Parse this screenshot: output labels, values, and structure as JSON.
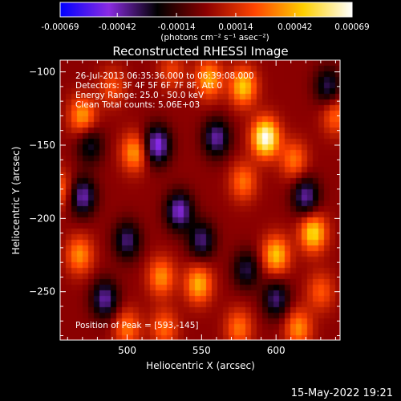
{
  "colorbar": {
    "tick_labels": [
      "-0.00069",
      "-0.00042",
      "-0.00014",
      "0.00014",
      "0.00042",
      "0.00069"
    ],
    "tick_values": [
      -0.00069,
      -0.00042,
      -0.00014,
      0.00014,
      0.00042,
      0.00069
    ],
    "range": [
      -0.00069,
      0.00069
    ],
    "units_label": "(photons cm⁻² s⁻¹ asec⁻²)",
    "colors": [
      "#0000ff",
      "#8a2be2",
      "#000000",
      "#8b0000",
      "#ff4500",
      "#ffd000",
      "#ffffff"
    ]
  },
  "chart_data": {
    "type": "heatmap",
    "title": "Reconstructed RHESSI Image",
    "xlabel": "Heliocentric X (arcsec)",
    "ylabel": "Heliocentric Y (arcsec)",
    "xlim": [
      455,
      643
    ],
    "ylim": [
      -283,
      -92
    ],
    "x_ticks": [
      500,
      550,
      600
    ],
    "x_tick_labels": [
      "500",
      "550",
      "600"
    ],
    "y_ticks": [
      -100,
      -150,
      -200,
      -250
    ],
    "y_tick_labels": [
      "−100",
      "−150",
      "−200",
      "−250"
    ],
    "annotations": [
      "26-Jul-2013 06:35:36.000 to 06:39:08.000",
      "Detectors: 3F 4F 5F 6F 7F 8F, Att 0",
      "Energy Range: 25.0 - 50.0 keV",
      "Clean    Total counts: 5.06E+03"
    ],
    "peak_label": "Position of Peak = [593,-145]",
    "peak": [
      593,
      -145
    ],
    "blobs": [
      {
        "x": 593,
        "y": -145,
        "v": 0.00069
      },
      {
        "x": 600,
        "y": -225,
        "v": 0.00045
      },
      {
        "x": 625,
        "y": -210,
        "v": 0.0005
      },
      {
        "x": 555,
        "y": -105,
        "v": 0.0004
      },
      {
        "x": 578,
        "y": -110,
        "v": 0.00046
      },
      {
        "x": 470,
        "y": -130,
        "v": 0.00038
      },
      {
        "x": 505,
        "y": -155,
        "v": 0.00038
      },
      {
        "x": 612,
        "y": -160,
        "v": 0.0003
      },
      {
        "x": 578,
        "y": -175,
        "v": 0.0003
      },
      {
        "x": 548,
        "y": -245,
        "v": 0.00042
      },
      {
        "x": 523,
        "y": -240,
        "v": 0.00035
      },
      {
        "x": 468,
        "y": -225,
        "v": 0.00035
      },
      {
        "x": 500,
        "y": -275,
        "v": 0.0003
      },
      {
        "x": 525,
        "y": -275,
        "v": 0.00028
      },
      {
        "x": 575,
        "y": -275,
        "v": 0.0003
      },
      {
        "x": 615,
        "y": -275,
        "v": 0.00035
      },
      {
        "x": 630,
        "y": -250,
        "v": 0.00025
      },
      {
        "x": 490,
        "y": -110,
        "v": 0.00022
      },
      {
        "x": 455,
        "y": -180,
        "v": 0.00026
      },
      {
        "x": 640,
        "y": -130,
        "v": 0.00028
      },
      {
        "x": 530,
        "y": -100,
        "v": 0.0002
      },
      {
        "x": 520,
        "y": -150,
        "v": -0.0005
      },
      {
        "x": 535,
        "y": -195,
        "v": -0.00045
      },
      {
        "x": 470,
        "y": -185,
        "v": -0.00042
      },
      {
        "x": 485,
        "y": -255,
        "v": -0.0004
      },
      {
        "x": 560,
        "y": -145,
        "v": -0.0004
      },
      {
        "x": 620,
        "y": -185,
        "v": -0.0004
      },
      {
        "x": 600,
        "y": -255,
        "v": -0.00035
      },
      {
        "x": 500,
        "y": -215,
        "v": -0.00035
      },
      {
        "x": 550,
        "y": -215,
        "v": -0.00035
      },
      {
        "x": 635,
        "y": -110,
        "v": -0.00032
      },
      {
        "x": 475,
        "y": -150,
        "v": -0.00028
      },
      {
        "x": 580,
        "y": -235,
        "v": -0.0003
      }
    ]
  },
  "footer": {
    "date": "15-May-2022 19:21"
  }
}
